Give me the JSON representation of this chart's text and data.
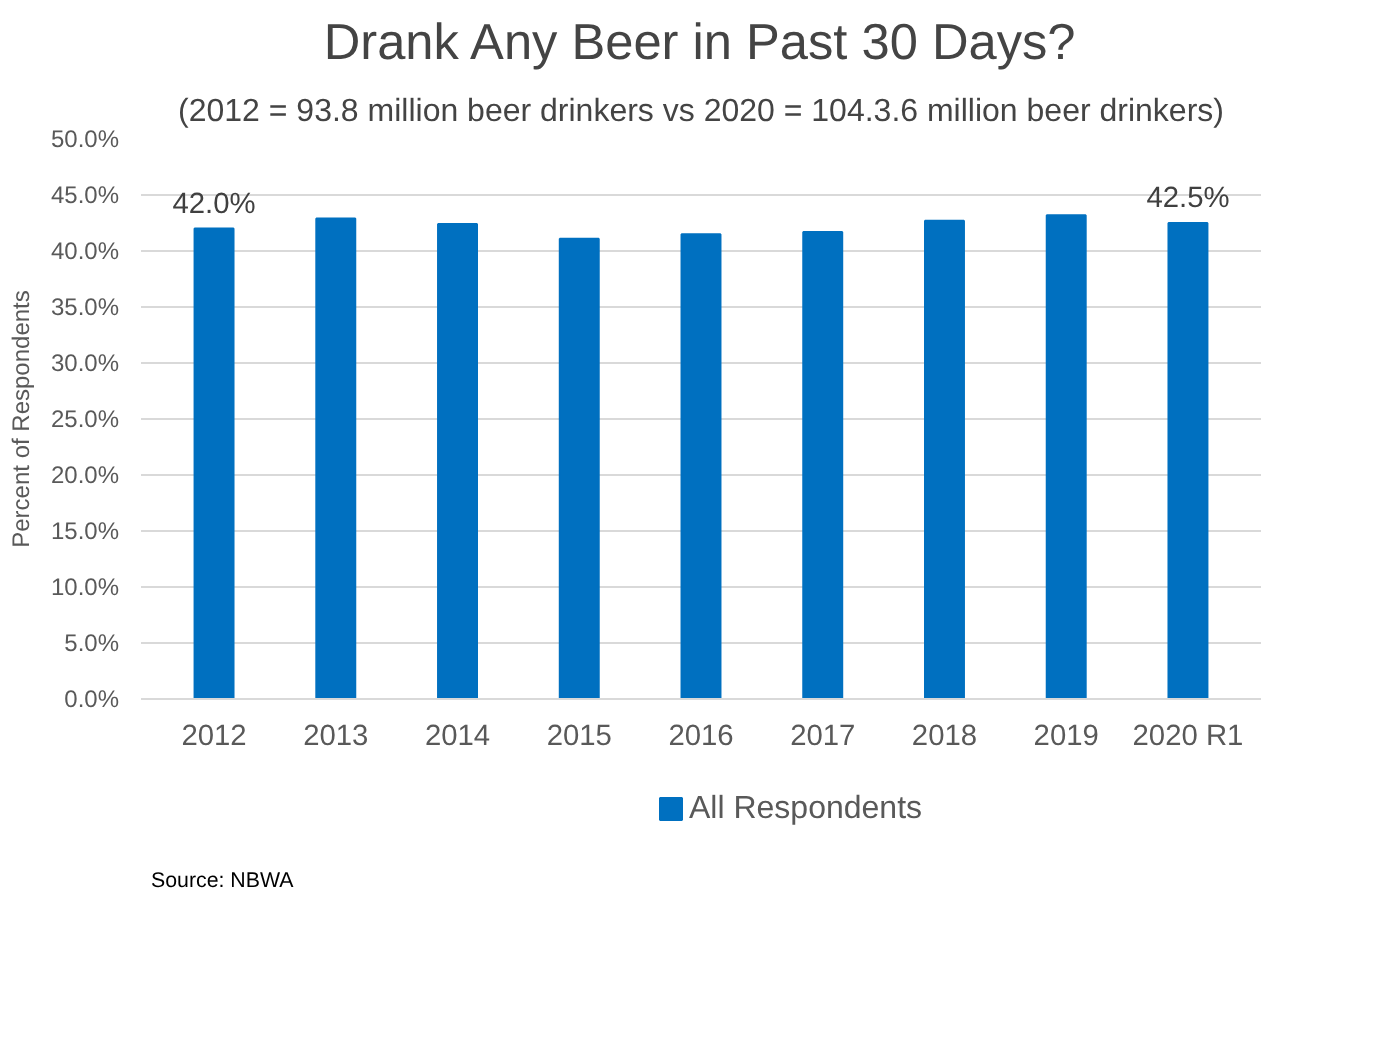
{
  "chart_data": {
    "type": "bar",
    "title": "Drank Any Beer in Past 30 Days?",
    "subtitle": "(2012 = 93.8 million beer drinkers vs 2020 = 104.3.6 million beer drinkers)",
    "ylabel": "Percent of Respondents",
    "categories": [
      "2012",
      "2013",
      "2014",
      "2015",
      "2016",
      "2017",
      "2018",
      "2019",
      "2020 R1"
    ],
    "series": [
      {
        "name": "All Respondents",
        "color": "#0070c0",
        "values": [
          42.0,
          42.9,
          42.4,
          41.1,
          41.5,
          41.7,
          42.7,
          43.2,
          42.5
        ],
        "value_labels": [
          "42.0%",
          null,
          null,
          null,
          null,
          null,
          null,
          null,
          "42.5%"
        ]
      }
    ],
    "ylim": [
      0,
      50
    ],
    "yticks": [
      {
        "value": 0,
        "label": "0.0%"
      },
      {
        "value": 5,
        "label": "5.0%"
      },
      {
        "value": 10,
        "label": "10.0%"
      },
      {
        "value": 15,
        "label": "15.0%"
      },
      {
        "value": 20,
        "label": "20.0%"
      },
      {
        "value": 25,
        "label": "25.0%"
      },
      {
        "value": 30,
        "label": "30.0%"
      },
      {
        "value": 35,
        "label": "35.0%"
      },
      {
        "value": 40,
        "label": "40.0%"
      },
      {
        "value": 45,
        "label": "45.0%"
      },
      {
        "value": 50,
        "label": "50.0%"
      }
    ],
    "grid": "y",
    "legend": "bottom",
    "annotations": [
      "Source: NBWA"
    ]
  }
}
